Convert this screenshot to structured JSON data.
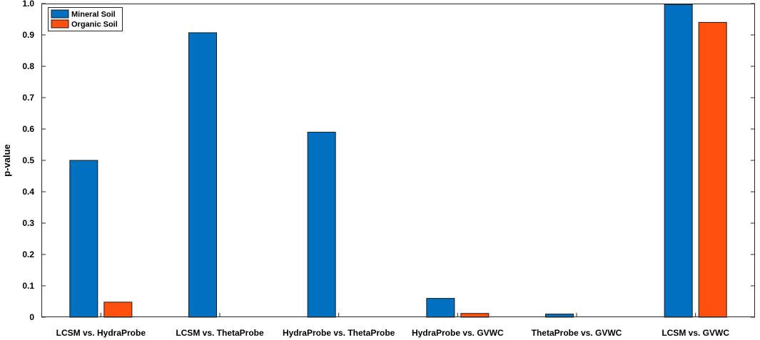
{
  "chart_data": {
    "type": "bar",
    "categories": [
      "LCSM vs. HydraProbe",
      "LCSM vs. ThetaProbe",
      "HydraProbe vs. ThetaProbe",
      "HydraProbe vs. GVWC",
      "ThetaProbe vs. GVWC",
      "LCSM vs. GVWC"
    ],
    "series": [
      {
        "name": "Mineral Soil",
        "color": "#0070c0",
        "values": [
          0.5,
          0.907,
          0.59,
          0.06,
          0.01,
          0.997
        ]
      },
      {
        "name": "Organic Soil",
        "color": "#ff5010",
        "values": [
          0.048,
          null,
          null,
          0.012,
          null,
          0.94
        ]
      }
    ],
    "title": "",
    "xlabel": "",
    "ylabel": "p-value",
    "ylim": [
      0,
      1.0
    ],
    "yticks": [
      0,
      0.1,
      0.2,
      0.3,
      0.4,
      0.5,
      0.6,
      0.7,
      0.8,
      0.9,
      1.0
    ],
    "ytick_labels": [
      "0",
      "0.1",
      "0.2",
      "0.3",
      "0.4",
      "0.5",
      "0.6",
      "0.7",
      "0.8",
      "0.9",
      "1.0"
    ],
    "grid": false,
    "legend_position": "top-left"
  }
}
